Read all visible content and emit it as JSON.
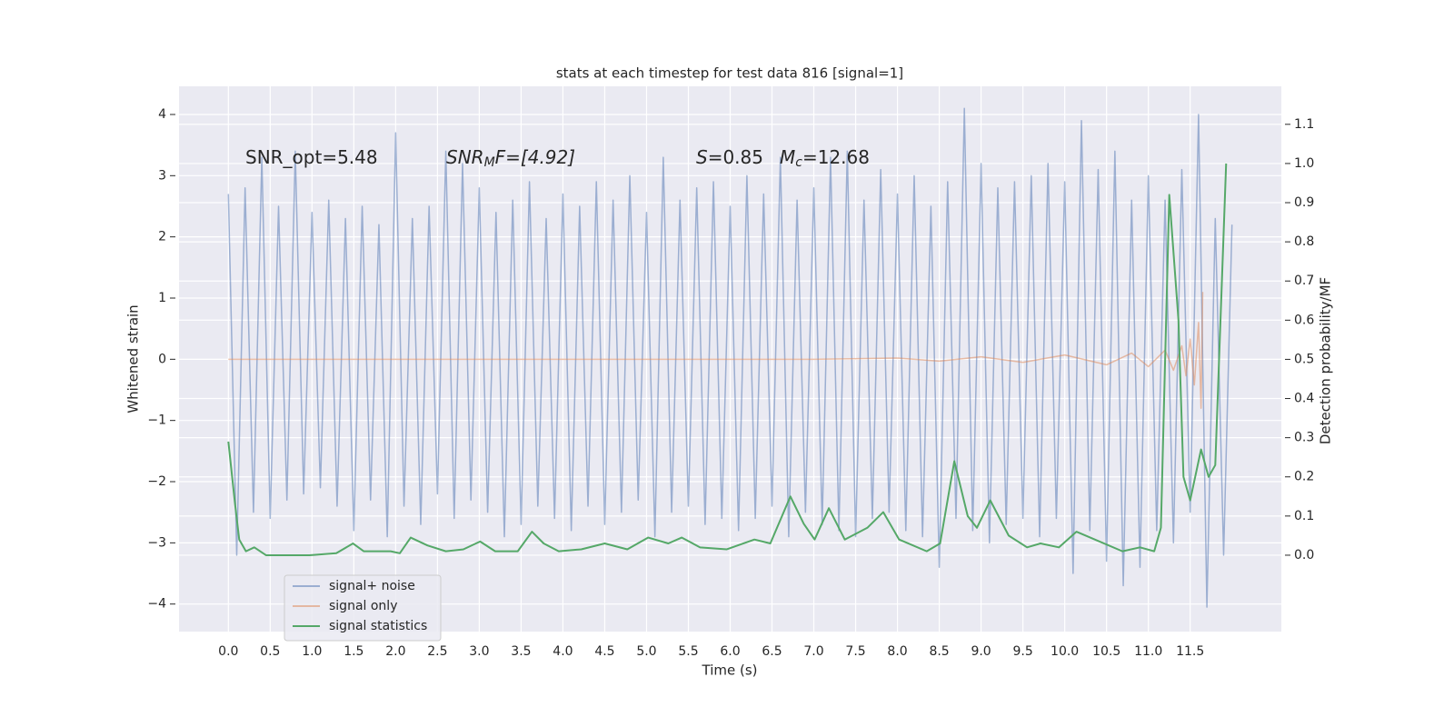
{
  "chart_data": {
    "type": "line",
    "title": "stats at each timestep for test data 816 [signal=1]",
    "xlabel": "Time (s)",
    "ylabel": "Whitened strain",
    "y2label": "Detection probability/MF",
    "annotations": [
      [
        "SNR_opt=5.48"
      ],
      [
        "SNR",
        "M",
        "F=[4.92]"
      ],
      [
        "S",
        "=0.85"
      ],
      [
        "M",
        "c",
        "=12.68"
      ]
    ],
    "grid": true,
    "legend": "lower left",
    "xlim": [
      -0.59,
      12.59
    ],
    "ylim": [
      -4.45,
      4.46
    ],
    "y2lim": [
      -0.195,
      1.197
    ],
    "xticks": [
      {
        "value": 0,
        "label": "0.0"
      },
      {
        "value": 0.5,
        "label": "0.5"
      },
      {
        "value": 1,
        "label": "1.0"
      },
      {
        "value": 1.5,
        "label": "1.5"
      },
      {
        "value": 2,
        "label": "2.0"
      },
      {
        "value": 2.5,
        "label": "2.5"
      },
      {
        "value": 3,
        "label": "3.0"
      },
      {
        "value": 3.5,
        "label": "3.5"
      },
      {
        "value": 4,
        "label": "4.0"
      },
      {
        "value": 4.5,
        "label": "4.5"
      },
      {
        "value": 5,
        "label": "5.0"
      },
      {
        "value": 5.5,
        "label": "5.5"
      },
      {
        "value": 6,
        "label": "6.0"
      },
      {
        "value": 6.5,
        "label": "6.5"
      },
      {
        "value": 7,
        "label": "7.0"
      },
      {
        "value": 7.5,
        "label": "7.5"
      },
      {
        "value": 8,
        "label": "8.0"
      },
      {
        "value": 8.5,
        "label": "8.5"
      },
      {
        "value": 9,
        "label": "9.0"
      },
      {
        "value": 9.5,
        "label": "9.5"
      },
      {
        "value": 10,
        "label": "10.0"
      },
      {
        "value": 10.5,
        "label": "10.5"
      },
      {
        "value": 11,
        "label": "11.0"
      },
      {
        "value": 11.5,
        "label": "11.5"
      }
    ],
    "yticks": [
      {
        "value": -4,
        "label": "−4"
      },
      {
        "value": -3,
        "label": "−3"
      },
      {
        "value": -2,
        "label": "−2"
      },
      {
        "value": -1,
        "label": "−1"
      },
      0,
      1,
      2,
      3,
      4
    ],
    "y2ticks": [
      {
        "value": 0,
        "label": "0.0"
      },
      {
        "value": 0.1,
        "label": "0.1"
      },
      {
        "value": 0.2,
        "label": "0.2"
      },
      {
        "value": 0.3,
        "label": "0.3"
      },
      {
        "value": 0.4,
        "label": "0.4"
      },
      {
        "value": 0.5,
        "label": "0.5"
      },
      {
        "value": 0.6,
        "label": "0.6"
      },
      {
        "value": 0.7,
        "label": "0.7"
      },
      {
        "value": 0.8,
        "label": "0.8"
      },
      {
        "value": 0.9,
        "label": "0.9"
      },
      {
        "value": 1,
        "label": "1.0"
      },
      {
        "value": 1.1,
        "label": "1.1"
      }
    ],
    "series": [
      {
        "name": "signal+ noise",
        "color": "#4c72b0",
        "x": [
          0,
          0.1,
          0.2,
          0.3,
          0.4,
          0.5,
          0.6,
          0.7,
          0.8,
          0.9,
          1,
          1.1,
          1.2,
          1.3,
          1.4,
          1.5,
          1.6,
          1.7,
          1.8,
          1.9,
          2,
          2.1,
          2.2,
          2.3,
          2.4,
          2.5,
          2.6,
          2.7,
          2.8,
          2.9,
          3,
          3.1,
          3.2,
          3.3,
          3.4,
          3.5,
          3.6,
          3.7,
          3.8,
          3.9,
          4,
          4.1,
          4.2,
          4.3,
          4.4,
          4.5,
          4.6,
          4.7,
          4.8,
          4.9,
          5,
          5.1,
          5.2,
          5.3,
          5.4,
          5.5,
          5.6,
          5.7,
          5.8,
          5.9,
          6,
          6.1,
          6.2,
          6.3,
          6.4,
          6.5,
          6.6,
          6.7,
          6.8,
          6.9,
          7,
          7.1,
          7.2,
          7.3,
          7.4,
          7.5,
          7.6,
          7.7,
          7.8,
          7.9,
          8,
          8.1,
          8.2,
          8.3,
          8.4,
          8.5,
          8.6,
          8.7,
          8.8,
          8.9,
          9,
          9.1,
          9.2,
          9.3,
          9.4,
          9.5,
          9.6,
          9.7,
          9.8,
          9.9,
          10,
          10.1,
          10.2,
          10.3,
          10.4,
          10.5,
          10.6,
          10.7,
          10.8,
          10.9,
          11,
          11.1,
          11.2,
          11.3,
          11.4,
          11.5,
          11.6,
          11.7,
          11.8,
          11.9,
          12
        ],
        "values": [
          2.7,
          -3.2,
          2.8,
          -2.5,
          3.3,
          -2.6,
          2.5,
          -2.3,
          3.4,
          -2.2,
          2.4,
          -2.1,
          2.6,
          -2.4,
          2.3,
          -2.8,
          2.5,
          -2.3,
          2.2,
          -2.9,
          3.7,
          -2.4,
          2.3,
          -2.7,
          2.5,
          -2.2,
          3.4,
          -2.6,
          3.2,
          -2.3,
          2.8,
          -2.5,
          2.4,
          -2.9,
          2.6,
          -2.7,
          2.9,
          -2.4,
          2.3,
          -2.6,
          2.7,
          -2.8,
          2.5,
          -2.4,
          2.9,
          -2.7,
          2.6,
          -2.5,
          3.0,
          -2.3,
          2.4,
          -2.9,
          3.3,
          -2.5,
          2.6,
          -2.4,
          2.8,
          -2.7,
          2.9,
          -2.6,
          2.5,
          -2.8,
          3.0,
          -2.6,
          2.7,
          -2.4,
          3.3,
          -2.9,
          2.6,
          -2.5,
          2.8,
          -2.7,
          3.3,
          -2.8,
          3.4,
          -2.9,
          2.6,
          -2.6,
          3.1,
          -2.5,
          2.7,
          -2.8,
          3.0,
          -2.9,
          2.5,
          -3.4,
          2.9,
          -2.6,
          4.1,
          -2.8,
          3.2,
          -3.0,
          2.8,
          -2.7,
          2.9,
          -2.6,
          3.0,
          -2.9,
          3.2,
          -2.6,
          2.9,
          -3.5,
          3.9,
          -2.8,
          3.1,
          -3.3,
          3.4,
          -3.7,
          2.6,
          -3.4,
          3.0,
          -2.8,
          2.6,
          -3.0,
          3.1,
          -2.5,
          4.0,
          -4.05,
          2.3,
          -3.2,
          2.2
        ]
      },
      {
        "name": "signal only",
        "color": "#dd8452",
        "x": [
          0,
          7,
          8,
          8.5,
          9,
          9.5,
          10,
          10.5,
          10.8,
          11,
          11.2,
          11.3,
          11.4,
          11.45,
          11.5,
          11.55,
          11.6,
          11.63,
          11.65
        ],
        "values": [
          0,
          0,
          0.02,
          -0.03,
          0.04,
          -0.05,
          0.07,
          -0.09,
          0.1,
          -0.12,
          0.15,
          -0.18,
          0.22,
          -0.27,
          0.33,
          -0.42,
          0.6,
          -0.8,
          1.1
        ]
      },
      {
        "name": "signal statistics",
        "color": "#55a868",
        "axis": "y2",
        "x": [
          0,
          0.08,
          0.13,
          0.21,
          0.31,
          0.45,
          0.97,
          1.29,
          1.49,
          1.62,
          1.94,
          2.05,
          2.18,
          2.38,
          2.6,
          2.81,
          3.01,
          3.19,
          3.46,
          3.63,
          3.77,
          3.95,
          4.22,
          4.5,
          4.77,
          5.02,
          5.26,
          5.42,
          5.64,
          5.96,
          6.29,
          6.48,
          6.72,
          6.88,
          7.01,
          7.18,
          7.37,
          7.64,
          7.83,
          8.02,
          8.35,
          8.51,
          8.68,
          8.84,
          8.95,
          9.11,
          9.33,
          9.55,
          9.71,
          9.93,
          10.14,
          10.36,
          10.69,
          10.9,
          11.07,
          11.15,
          11.25,
          11.36,
          11.42,
          11.5,
          11.63,
          11.72,
          11.8,
          11.93
        ],
        "values": [
          0.29,
          0.13,
          0.04,
          0.01,
          0.02,
          0,
          0,
          0.005,
          0.03,
          0.01,
          0.01,
          0.005,
          0.045,
          0.025,
          0.01,
          0.015,
          0.035,
          0.01,
          0.01,
          0.06,
          0.03,
          0.01,
          0.015,
          0.03,
          0.015,
          0.045,
          0.03,
          0.045,
          0.02,
          0.015,
          0.04,
          0.03,
          0.15,
          0.08,
          0.04,
          0.12,
          0.04,
          0.07,
          0.11,
          0.04,
          0.01,
          0.03,
          0.24,
          0.1,
          0.07,
          0.14,
          0.05,
          0.02,
          0.03,
          0.02,
          0.06,
          0.04,
          0.01,
          0.02,
          0.01,
          0.07,
          0.92,
          0.6,
          0.2,
          0.14,
          0.27,
          0.2,
          0.23,
          1.0
        ]
      }
    ]
  }
}
